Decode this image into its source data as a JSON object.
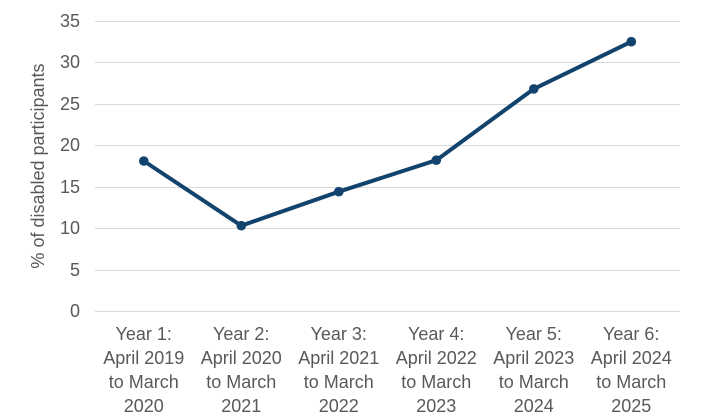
{
  "chart_data": {
    "type": "line",
    "title": "",
    "xlabel": "",
    "ylabel": "% of disabled participants",
    "categories": [
      [
        "Year 1:",
        "April 2019",
        "to March",
        "2020"
      ],
      [
        "Year 2:",
        "April 2020",
        "to March",
        "2021"
      ],
      [
        "Year 3:",
        "April 2021",
        "to March",
        "2022"
      ],
      [
        "Year 4:",
        "April 2022",
        "to March",
        "2023"
      ],
      [
        "Year 5:",
        "April 2023",
        "to March",
        "2024"
      ],
      [
        "Year 6:",
        "April 2024",
        "to March",
        "2025"
      ]
    ],
    "series": [
      {
        "name": "% of disabled participants",
        "values": [
          18.1,
          10.3,
          14.4,
          18.2,
          26.8,
          32.5
        ]
      }
    ],
    "ylim": [
      0,
      35
    ],
    "yticks": [
      0,
      5,
      10,
      15,
      20,
      25,
      30,
      35
    ],
    "grid": "horizontal",
    "legend": "none",
    "colors": {
      "line": "#12436D",
      "grid": "#d9d9d9",
      "text": "#595959"
    }
  }
}
